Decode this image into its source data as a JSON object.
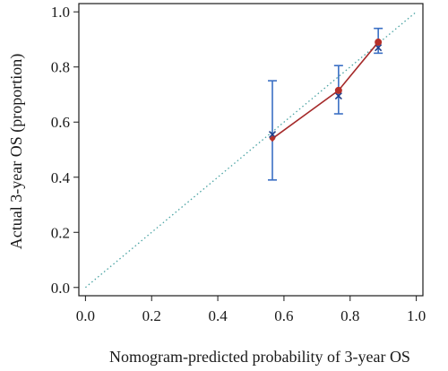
{
  "chart_data": {
    "type": "line",
    "title": "",
    "xlabel": "Nomogram-predicted probability of 3-year OS",
    "ylabel": "Actual 3-year OS (proportion)",
    "xlim": [
      -0.02,
      1.02
    ],
    "ylim": [
      -0.03,
      1.03
    ],
    "x_ticks": [
      0.0,
      0.2,
      0.4,
      0.6,
      0.8,
      1.0
    ],
    "x_tick_labels": [
      "0.0",
      "0.2",
      "0.4",
      "0.6",
      "0.8",
      "1.0"
    ],
    "y_ticks": [
      0.0,
      0.2,
      0.4,
      0.6,
      0.8,
      1.0
    ],
    "y_tick_labels": [
      "0.0",
      "0.2",
      "0.4",
      "0.6",
      "0.8",
      "1.0"
    ],
    "grid": false,
    "reference_line": {
      "x": [
        0,
        1
      ],
      "y": [
        0,
        1
      ],
      "color": "#4aa3a3",
      "style": "dotted"
    },
    "series": [
      {
        "kind": "calibration",
        "color": "#a52a2a",
        "marker_color": "#b5302a",
        "x": [
          0.565,
          0.765,
          0.885
        ],
        "y": [
          0.54,
          0.715,
          0.89
        ]
      },
      {
        "kind": "observed_with_ci",
        "color": "#3a6fc4",
        "x": [
          0.565,
          0.765,
          0.885
        ],
        "y": [
          0.555,
          0.695,
          0.87
        ],
        "lower": [
          0.39,
          0.63,
          0.85
        ],
        "upper": [
          0.75,
          0.805,
          0.94
        ]
      }
    ]
  }
}
